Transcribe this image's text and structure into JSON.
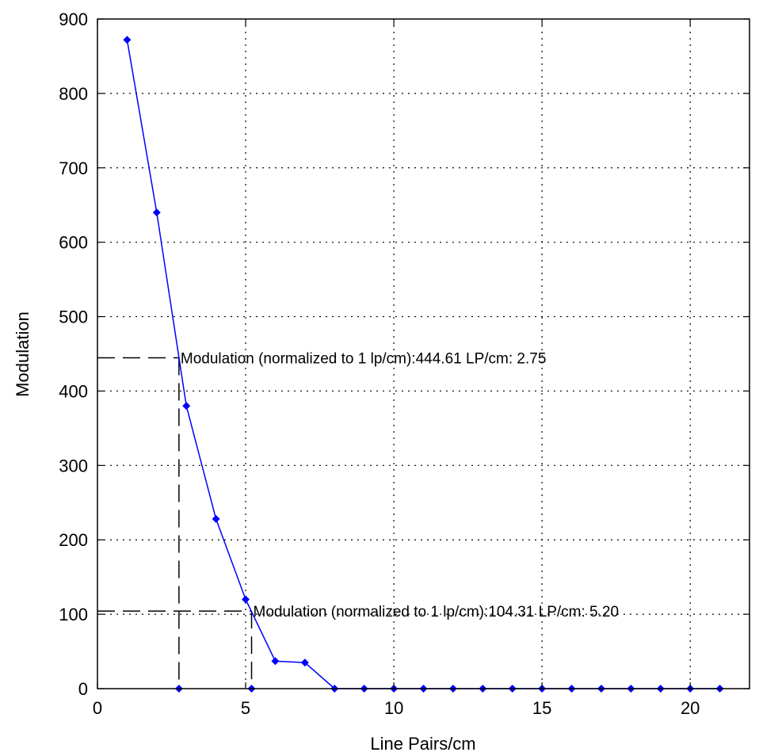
{
  "chart_data": {
    "type": "line",
    "xlabel": "Line Pairs/cm",
    "ylabel": "Modulation",
    "xlim": [
      0,
      22
    ],
    "ylim": [
      0,
      900
    ],
    "xticks": [
      0,
      5,
      10,
      15,
      20
    ],
    "yticks": [
      0,
      100,
      200,
      300,
      400,
      500,
      600,
      700,
      800,
      900
    ],
    "grid": true,
    "series_color": "#0000ff",
    "reference_color": "#000000",
    "series": [
      {
        "x": [
          1,
          2,
          3,
          4,
          5,
          6,
          7,
          8,
          9,
          10,
          11,
          12,
          13,
          14,
          15,
          16,
          17,
          18,
          19,
          20,
          21
        ],
        "values": [
          872,
          640,
          380,
          228,
          120,
          37,
          35,
          0,
          0,
          0,
          0,
          0,
          0,
          0,
          0,
          0,
          0,
          0,
          0,
          0,
          0
        ]
      }
    ],
    "reference_points": [
      {
        "x": 2.75,
        "y": 444.61,
        "label": "Modulation (normalized to 1 lp/cm):444.61  LP/cm: 2.75"
      },
      {
        "x": 5.2,
        "y": 104.31,
        "label": "Modulation (normalized to 1 lp/cm):104.31  LP/cm: 5.20"
      }
    ]
  }
}
